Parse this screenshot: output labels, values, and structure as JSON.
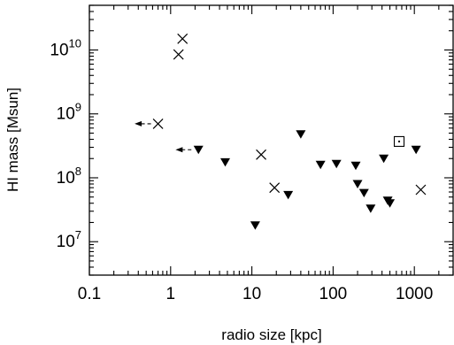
{
  "chart_data": {
    "type": "scatter",
    "title": "",
    "xlabel": "radio size [kpc]",
    "ylabel": "HI mass [Msun]",
    "xscale": "log",
    "yscale": "log",
    "xlim": [
      0.1,
      3000
    ],
    "ylim": [
      3000000,
      50000000000
    ],
    "grid": false,
    "legend": "none",
    "x_ticks": [
      {
        "value": 0.1,
        "label": "0.1"
      },
      {
        "value": 1,
        "label": "1"
      },
      {
        "value": 10,
        "label": "10"
      },
      {
        "value": 100,
        "label": "100"
      },
      {
        "value": 1000,
        "label": "1000"
      }
    ],
    "y_ticks": [
      {
        "value": 10000000,
        "base": "10",
        "exp": "7"
      },
      {
        "value": 100000000,
        "base": "10",
        "exp": "8"
      },
      {
        "value": 1000000000,
        "base": "10",
        "exp": "9"
      },
      {
        "value": 10000000000,
        "base": "10",
        "exp": "10"
      }
    ],
    "series": [
      {
        "marker": "cross",
        "points": [
          {
            "x": 1.25,
            "y": 8500000000
          },
          {
            "x": 1.4,
            "y": 15000000000
          },
          {
            "x": 0.7,
            "y": 700000000
          },
          {
            "x": 13,
            "y": 230000000
          },
          {
            "x": 19,
            "y": 70000000
          },
          {
            "x": 1200,
            "y": 65000000
          }
        ]
      },
      {
        "marker": "triangle-down",
        "points": [
          {
            "x": 2.2,
            "y": 275000000
          },
          {
            "x": 4.7,
            "y": 175000000
          },
          {
            "x": 11,
            "y": 18000000
          },
          {
            "x": 28,
            "y": 54000000
          },
          {
            "x": 40,
            "y": 480000000
          },
          {
            "x": 70,
            "y": 160000000
          },
          {
            "x": 110,
            "y": 165000000
          },
          {
            "x": 190,
            "y": 155000000
          },
          {
            "x": 200,
            "y": 80000000
          },
          {
            "x": 240,
            "y": 58000000
          },
          {
            "x": 290,
            "y": 33000000
          },
          {
            "x": 420,
            "y": 200000000
          },
          {
            "x": 470,
            "y": 44000000
          },
          {
            "x": 500,
            "y": 40000000
          },
          {
            "x": 1050,
            "y": 275000000
          }
        ]
      },
      {
        "marker": "square-open",
        "points": [
          {
            "x": 650,
            "y": 370000000
          }
        ]
      }
    ],
    "upper_limit_arrows": [
      {
        "from_x": 0.7,
        "to_x": 0.36,
        "y": 700000000
      },
      {
        "from_x": 2.2,
        "to_x": 1.15,
        "y": 275000000
      }
    ]
  }
}
